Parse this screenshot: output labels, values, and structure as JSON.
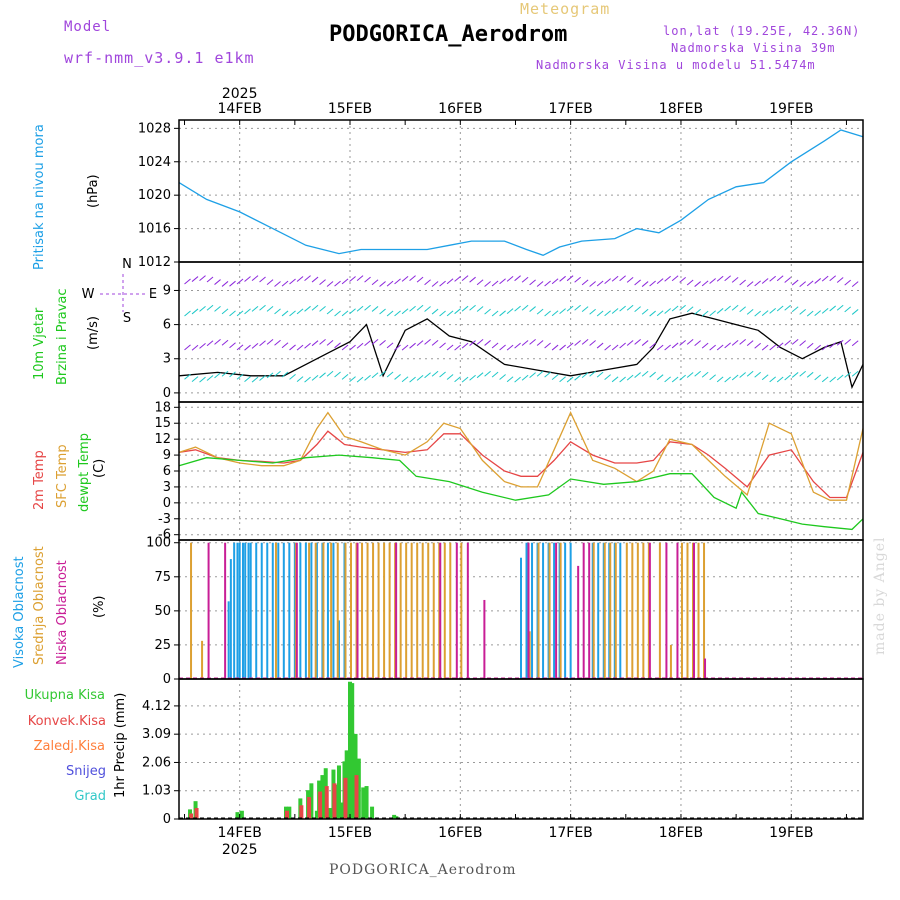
{
  "header": {
    "model_label": "Model",
    "model_name": "wrf-nmm_v3.9.1 e1km",
    "meteogram_label": "Meteogram",
    "station_title": "PODGORICA_Aerodrom",
    "lonlat": "lon,lat (19.25E, 42.36N)",
    "elevation": "Nadmorska Visina 39m",
    "model_elevation": "Nadmorska Visina u modelu 51.5474m"
  },
  "footer": {
    "station": "PODGORICA_Aerodrom",
    "credit": "made by Angel"
  },
  "colors": {
    "pressure": "#1ea0e6",
    "temp": "#e64646",
    "sfc": "#dca032",
    "dewpt": "#1ec81e",
    "high_cloud": "#1ea0e6",
    "mid_cloud": "#dca032",
    "low_cloud": "#c81e96",
    "total_precip": "#32c832",
    "conv_precip": "#e64646",
    "frozen": "#ff7f3c",
    "snow": "#5050dc",
    "hail": "#32c8c8",
    "wind_speed": "#000000"
  },
  "chart_data": [
    {
      "type": "line",
      "panel": "pressure",
      "labels": [
        "Pritisak na nivou mora",
        "(hPa)"
      ],
      "ylabel": "Pritisak na nivou mora (hPa)",
      "ylim": [
        1012,
        1029
      ],
      "yticks": [
        1012,
        1016,
        1020,
        1024,
        1028
      ],
      "x_unit": "days from 14FEB 00UTC",
      "xlim": [
        -0.55,
        5.65
      ],
      "grid": true,
      "series": [
        {
          "name": "Pritisak",
          "x": [
            -0.55,
            -0.3,
            0,
            0.3,
            0.6,
            0.9,
            1.1,
            1.4,
            1.7,
            1.9,
            2.1,
            2.4,
            2.6,
            2.75,
            2.9,
            3.1,
            3.4,
            3.6,
            3.8,
            4.0,
            4.25,
            4.5,
            4.75,
            5.0,
            5.3,
            5.45,
            5.65
          ],
          "y": [
            1021.5,
            1019.5,
            1018,
            1016,
            1014,
            1013,
            1013.5,
            1013.5,
            1013.5,
            1014,
            1014.5,
            1014.5,
            1013.5,
            1012.8,
            1013.8,
            1014.5,
            1014.8,
            1016,
            1015.5,
            1017,
            1019.5,
            1021,
            1021.5,
            1024,
            1026.5,
            1027.8,
            1027
          ]
        }
      ]
    },
    {
      "type": "line",
      "panel": "wind",
      "labels": [
        "10m Vjetar",
        "Brzina i Pravac",
        "(m/s)"
      ],
      "compass": {
        "n": "N",
        "s": "S",
        "w": "W",
        "e": "E"
      },
      "ylabel": "10m Vjetar Brzina i Pravac (m/s)",
      "ylim": [
        -0.8,
        11.5
      ],
      "yticks": [
        0,
        3,
        6,
        9
      ],
      "xlim": [
        -0.55,
        5.65
      ],
      "grid": true,
      "series": [
        {
          "name": "brzina",
          "x": [
            -0.55,
            -0.2,
            0.1,
            0.4,
            0.6,
            0.8,
            1.0,
            1.15,
            1.3,
            1.5,
            1.7,
            1.9,
            2.1,
            2.4,
            2.7,
            3.0,
            3.3,
            3.6,
            3.75,
            3.9,
            4.1,
            4.3,
            4.5,
            4.7,
            4.9,
            5.1,
            5.3,
            5.45,
            5.55,
            5.65
          ],
          "y": [
            1.5,
            1.8,
            1.5,
            1.5,
            2.5,
            3.5,
            4.5,
            6.0,
            1.5,
            5.5,
            6.5,
            5.0,
            4.5,
            2.5,
            2.0,
            1.5,
            2.0,
            2.5,
            4.0,
            6.5,
            7.0,
            6.5,
            6.0,
            5.5,
            4.0,
            3.0,
            4.0,
            4.5,
            0.5,
            2.5
          ]
        }
      ]
    },
    {
      "type": "line",
      "panel": "temperature",
      "labels": [
        "2m Temp",
        "SFC Temp",
        "dewpt Temp",
        "(C)"
      ],
      "ylabel": "Temperatura (C)",
      "ylim": [
        -7,
        19
      ],
      "yticks": [
        -6,
        -3,
        0,
        3,
        6,
        9,
        12,
        15,
        18
      ],
      "xlim": [
        -0.55,
        5.65
      ],
      "grid": true,
      "series": [
        {
          "name": "2m Temp",
          "x": [
            -0.55,
            -0.4,
            -0.2,
            0,
            0.2,
            0.4,
            0.55,
            0.7,
            0.8,
            0.95,
            1.1,
            1.3,
            1.5,
            1.7,
            1.85,
            2.0,
            2.2,
            2.4,
            2.55,
            2.7,
            2.85,
            3.0,
            3.2,
            3.4,
            3.6,
            3.75,
            3.9,
            4.1,
            4.25,
            4.4,
            4.6,
            4.8,
            5.0,
            5.2,
            5.35,
            5.5,
            5.65
          ],
          "y": [
            9.5,
            10,
            8.5,
            8,
            7.8,
            7.5,
            8,
            11,
            13.5,
            11,
            10.5,
            10,
            9.5,
            10,
            13,
            13,
            9,
            6,
            5,
            5,
            8,
            11.5,
            9,
            7.5,
            7.5,
            8,
            11.5,
            11,
            9,
            6.5,
            3,
            9,
            10,
            4,
            1,
            1,
            9.5
          ]
        },
        {
          "name": "SFC Temp",
          "x": [
            -0.55,
            -0.4,
            -0.2,
            0,
            0.2,
            0.4,
            0.55,
            0.7,
            0.8,
            0.95,
            1.1,
            1.3,
            1.5,
            1.7,
            1.85,
            2.0,
            2.2,
            2.4,
            2.55,
            2.7,
            2.85,
            3.0,
            3.2,
            3.4,
            3.6,
            3.75,
            3.9,
            4.1,
            4.25,
            4.4,
            4.6,
            4.8,
            5.0,
            5.2,
            5.35,
            5.5,
            5.65
          ],
          "y": [
            9.5,
            10.5,
            8.5,
            7.5,
            7,
            7,
            8,
            14,
            17,
            12.5,
            11.5,
            10,
            9,
            11.5,
            15,
            14,
            8,
            4,
            3,
            3,
            10,
            17,
            8,
            6.5,
            4,
            6,
            12,
            11,
            8,
            5,
            1.5,
            15,
            13,
            2,
            0.5,
            0.5,
            14
          ]
        },
        {
          "name": "dewpt Temp",
          "x": [
            -0.55,
            -0.3,
            0,
            0.3,
            0.6,
            0.9,
            1.2,
            1.45,
            1.6,
            1.9,
            2.2,
            2.5,
            2.8,
            3.0,
            3.3,
            3.6,
            3.9,
            4.1,
            4.3,
            4.5,
            4.55,
            4.7,
            4.9,
            5.1,
            5.3,
            5.55,
            5.65
          ],
          "y": [
            7,
            8.5,
            8,
            7.5,
            8.5,
            9,
            8.5,
            8,
            5,
            4,
            2,
            0.5,
            1.5,
            4.5,
            3.5,
            4,
            5.5,
            5.5,
            1,
            -1,
            2,
            -2,
            -3,
            -4,
            -4.5,
            -5,
            -3
          ]
        }
      ]
    },
    {
      "type": "bar",
      "panel": "cloud",
      "labels": [
        "Visoka Oblacnost",
        "Srednja Oblacnost",
        "Niska Oblacnost",
        "(%)"
      ],
      "ylabel": "Oblacnost (%)",
      "ylim": [
        0,
        102
      ],
      "yticks": [
        0,
        25,
        50,
        75,
        100
      ],
      "xlim": [
        -0.55,
        5.65
      ],
      "grid": true,
      "series": [
        {
          "name": "Visoka Oblacnost",
          "x": [
            -0.1,
            -0.08,
            -0.05,
            -0.02,
            0,
            0.03,
            0.05,
            0.08,
            0.1,
            0.15,
            0.2,
            0.25,
            0.3,
            0.35,
            0.4,
            0.45,
            0.5,
            0.55,
            0.6,
            0.65,
            0.7,
            0.75,
            0.8,
            0.85,
            0.9,
            0.95,
            2.55,
            2.6,
            2.65,
            2.7,
            2.75,
            2.8,
            2.85,
            2.9,
            2.95,
            3.0,
            3.2,
            3.25,
            3.3,
            3.35,
            3.4,
            3.45
          ],
          "y": [
            57,
            88,
            100,
            100,
            100,
            100,
            100,
            100,
            100,
            100,
            100,
            100,
            100,
            100,
            100,
            100,
            100,
            100,
            100,
            100,
            100,
            100,
            100,
            100,
            43,
            100,
            89,
            100,
            100,
            100,
            100,
            100,
            100,
            100,
            100,
            100,
            100,
            100,
            100,
            100,
            100,
            100
          ]
        },
        {
          "name": "Srednja Oblacnost",
          "x": [
            -0.45,
            -0.35,
            0.32,
            0.5,
            0.62,
            0.68,
            0.75,
            0.82,
            0.88,
            0.95,
            1.0,
            1.05,
            1.1,
            1.15,
            1.2,
            1.25,
            1.3,
            1.35,
            1.4,
            1.45,
            1.5,
            1.55,
            1.6,
            1.65,
            1.7,
            1.75,
            1.8,
            1.85,
            1.9,
            2.0,
            2.62,
            2.7,
            2.8,
            2.9,
            3.2,
            3.3,
            3.35,
            3.4,
            3.5,
            3.55,
            3.6,
            3.65,
            3.7,
            3.8,
            3.9,
            4.0,
            4.05,
            4.1,
            4.15,
            4.2
          ],
          "y": [
            100,
            28,
            100,
            100,
            100,
            100,
            100,
            100,
            100,
            100,
            100,
            100,
            100,
            100,
            100,
            100,
            100,
            100,
            100,
            100,
            100,
            100,
            100,
            100,
            100,
            100,
            100,
            100,
            100,
            100,
            35,
            100,
            100,
            100,
            100,
            100,
            100,
            100,
            100,
            100,
            100,
            100,
            100,
            100,
            25,
            100,
            100,
            100,
            100,
            100
          ]
        },
        {
          "name": "Niska Oblacnost",
          "x": [
            -0.3,
            -0.15,
            0.5,
            1.05,
            1.4,
            1.8,
            1.95,
            2.05,
            2.2,
            2.6,
            2.85,
            3.05,
            3.1,
            3.15,
            3.7,
            3.85,
            3.95,
            4.1,
            4.2
          ],
          "y": [
            100,
            100,
            100,
            100,
            100,
            100,
            100,
            100,
            58,
            100,
            100,
            83,
            100,
            100,
            100,
            100,
            100,
            100,
            15
          ]
        }
      ]
    },
    {
      "type": "bar",
      "panel": "precip",
      "labels": [
        "Ukupna Kisa",
        "Konvek.Kisa",
        "Zaledj.Kisa",
        "Snijeg",
        "Grad",
        "1hr Precip (mm)"
      ],
      "ylabel": "1hr Precip (mm)",
      "ylim": [
        0,
        5.1
      ],
      "yticks": [
        0,
        1.03,
        2.06,
        3.09,
        4.12
      ],
      "xlim": [
        -0.55,
        5.65
      ],
      "x_tick_labels": [
        "14FEB",
        "15FEB",
        "16FEB",
        "17FEB",
        "18FEB",
        "19FEB"
      ],
      "x_ticks": [
        0,
        1,
        2,
        3,
        4,
        5
      ],
      "year_label": "2025",
      "grid": true,
      "series": [
        {
          "name": "Ukupna Kisa",
          "x": [
            -0.45,
            -0.4,
            -0.02,
            0.02,
            0.42,
            0.45,
            0.55,
            0.62,
            0.65,
            0.7,
            0.72,
            0.75,
            0.78,
            0.82,
            0.85,
            0.88,
            0.9,
            0.92,
            0.95,
            0.97,
            1.0,
            1.02,
            1.05,
            1.08,
            1.12,
            1.15,
            1.2,
            1.4,
            1.42
          ],
          "y": [
            0.35,
            0.65,
            0.25,
            0.3,
            0.45,
            0.45,
            0.75,
            1.05,
            1.3,
            0.3,
            1.4,
            1.6,
            1.85,
            0.4,
            1.8,
            1.25,
            1.95,
            0.6,
            2.1,
            2.5,
            5.0,
            4.95,
            3.1,
            2.2,
            1.15,
            1.2,
            0.45,
            0.15,
            0.1
          ]
        },
        {
          "name": "Konvek.Kisa",
          "x": [
            -0.45,
            -0.4,
            0.42,
            0.55,
            0.62,
            0.72,
            0.78,
            0.85,
            0.95,
            1.05
          ],
          "y": [
            0.2,
            0.4,
            0.3,
            0.5,
            0.8,
            1.0,
            1.2,
            1.3,
            1.5,
            1.6
          ]
        }
      ]
    }
  ]
}
